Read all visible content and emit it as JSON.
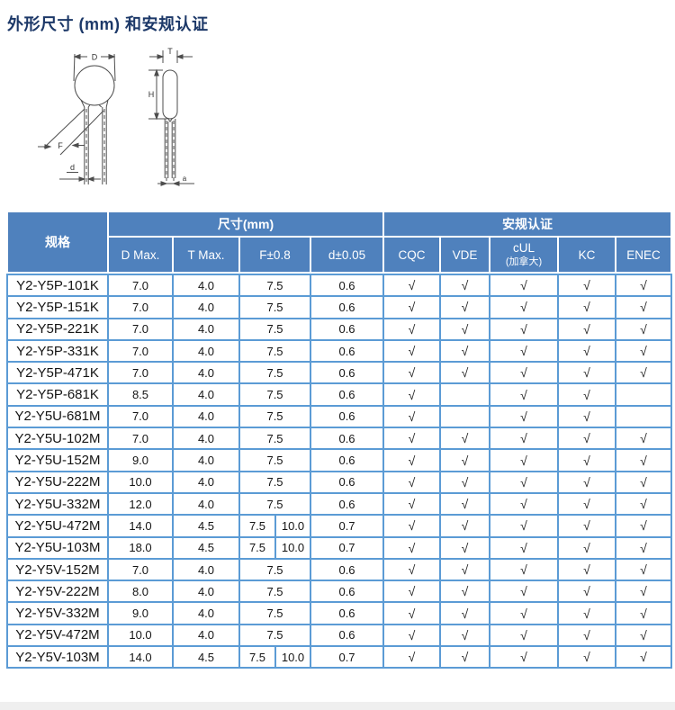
{
  "title": "外形尺寸 (mm) 和安规认证",
  "diagram": {
    "labels": {
      "D": "D",
      "T": "T",
      "H": "H",
      "F": "F",
      "d": "d",
      "a": "a"
    }
  },
  "table": {
    "spec_header": "规格",
    "dimensions_header": "尺寸(mm)",
    "certifications_header": "安规认证",
    "columns": {
      "d_max": "D Max.",
      "t_max": "T Max.",
      "f": "F±0.8",
      "d_lead": "d±0.05",
      "cqc": "CQC",
      "vde": "VDE",
      "cul_line1": "cUL",
      "cul_line2": "(加拿大)",
      "kc": "KC",
      "enec": "ENEC"
    },
    "check_glyph": "√",
    "cert_keys": [
      "cqc",
      "vde",
      "cul",
      "kc",
      "enec"
    ],
    "rows": [
      {
        "spec": "Y2-Y5P-101K",
        "d_max": "7.0",
        "t_max": "4.0",
        "f": [
          "7.5"
        ],
        "d_lead": "0.6",
        "certs": [
          true,
          true,
          true,
          true,
          true
        ]
      },
      {
        "spec": "Y2-Y5P-151K",
        "d_max": "7.0",
        "t_max": "4.0",
        "f": [
          "7.5"
        ],
        "d_lead": "0.6",
        "certs": [
          true,
          true,
          true,
          true,
          true
        ]
      },
      {
        "spec": "Y2-Y5P-221K",
        "d_max": "7.0",
        "t_max": "4.0",
        "f": [
          "7.5"
        ],
        "d_lead": "0.6",
        "certs": [
          true,
          true,
          true,
          true,
          true
        ]
      },
      {
        "spec": "Y2-Y5P-331K",
        "d_max": "7.0",
        "t_max": "4.0",
        "f": [
          "7.5"
        ],
        "d_lead": "0.6",
        "certs": [
          true,
          true,
          true,
          true,
          true
        ]
      },
      {
        "spec": "Y2-Y5P-471K",
        "d_max": "7.0",
        "t_max": "4.0",
        "f": [
          "7.5"
        ],
        "d_lead": "0.6",
        "certs": [
          true,
          true,
          true,
          true,
          true
        ]
      },
      {
        "spec": "Y2-Y5P-681K",
        "d_max": "8.5",
        "t_max": "4.0",
        "f": [
          "7.5"
        ],
        "d_lead": "0.6",
        "certs": [
          true,
          false,
          true,
          true,
          false
        ]
      },
      {
        "spec": "Y2-Y5U-681M",
        "d_max": "7.0",
        "t_max": "4.0",
        "f": [
          "7.5"
        ],
        "d_lead": "0.6",
        "certs": [
          true,
          false,
          true,
          true,
          false
        ]
      },
      {
        "spec": "Y2-Y5U-102M",
        "d_max": "7.0",
        "t_max": "4.0",
        "f": [
          "7.5"
        ],
        "d_lead": "0.6",
        "certs": [
          true,
          true,
          true,
          true,
          true
        ]
      },
      {
        "spec": "Y2-Y5U-152M",
        "d_max": "9.0",
        "t_max": "4.0",
        "f": [
          "7.5"
        ],
        "d_lead": "0.6",
        "certs": [
          true,
          true,
          true,
          true,
          true
        ]
      },
      {
        "spec": "Y2-Y5U-222M",
        "d_max": "10.0",
        "t_max": "4.0",
        "f": [
          "7.5"
        ],
        "d_lead": "0.6",
        "certs": [
          true,
          true,
          true,
          true,
          true
        ]
      },
      {
        "spec": "Y2-Y5U-332M",
        "d_max": "12.0",
        "t_max": "4.0",
        "f": [
          "7.5"
        ],
        "d_lead": "0.6",
        "certs": [
          true,
          true,
          true,
          true,
          true
        ]
      },
      {
        "spec": "Y2-Y5U-472M",
        "d_max": "14.0",
        "t_max": "4.5",
        "f": [
          "7.5",
          "10.0"
        ],
        "d_lead": "0.7",
        "certs": [
          true,
          true,
          true,
          true,
          true
        ]
      },
      {
        "spec": "Y2-Y5U-103M",
        "d_max": "18.0",
        "t_max": "4.5",
        "f": [
          "7.5",
          "10.0"
        ],
        "d_lead": "0.7",
        "certs": [
          true,
          true,
          true,
          true,
          true
        ]
      },
      {
        "spec": "Y2-Y5V-152M",
        "d_max": "7.0",
        "t_max": "4.0",
        "f": [
          "7.5"
        ],
        "d_lead": "0.6",
        "certs": [
          true,
          true,
          true,
          true,
          true
        ]
      },
      {
        "spec": "Y2-Y5V-222M",
        "d_max": "8.0",
        "t_max": "4.0",
        "f": [
          "7.5"
        ],
        "d_lead": "0.6",
        "certs": [
          true,
          true,
          true,
          true,
          true
        ]
      },
      {
        "spec": "Y2-Y5V-332M",
        "d_max": "9.0",
        "t_max": "4.0",
        "f": [
          "7.5"
        ],
        "d_lead": "0.6",
        "certs": [
          true,
          true,
          true,
          true,
          true
        ]
      },
      {
        "spec": "Y2-Y5V-472M",
        "d_max": "10.0",
        "t_max": "4.0",
        "f": [
          "7.5"
        ],
        "d_lead": "0.6",
        "certs": [
          true,
          true,
          true,
          true,
          true
        ]
      },
      {
        "spec": "Y2-Y5V-103M",
        "d_max": "14.0",
        "t_max": "4.5",
        "f": [
          "7.5",
          "10.0"
        ],
        "d_lead": "0.7",
        "certs": [
          true,
          true,
          true,
          true,
          true
        ]
      }
    ]
  },
  "colors": {
    "header_bg": "#4f81bd",
    "table_border": "#5b9bd5",
    "title_text": "#1c3868",
    "footer_strip": "#efefef"
  }
}
